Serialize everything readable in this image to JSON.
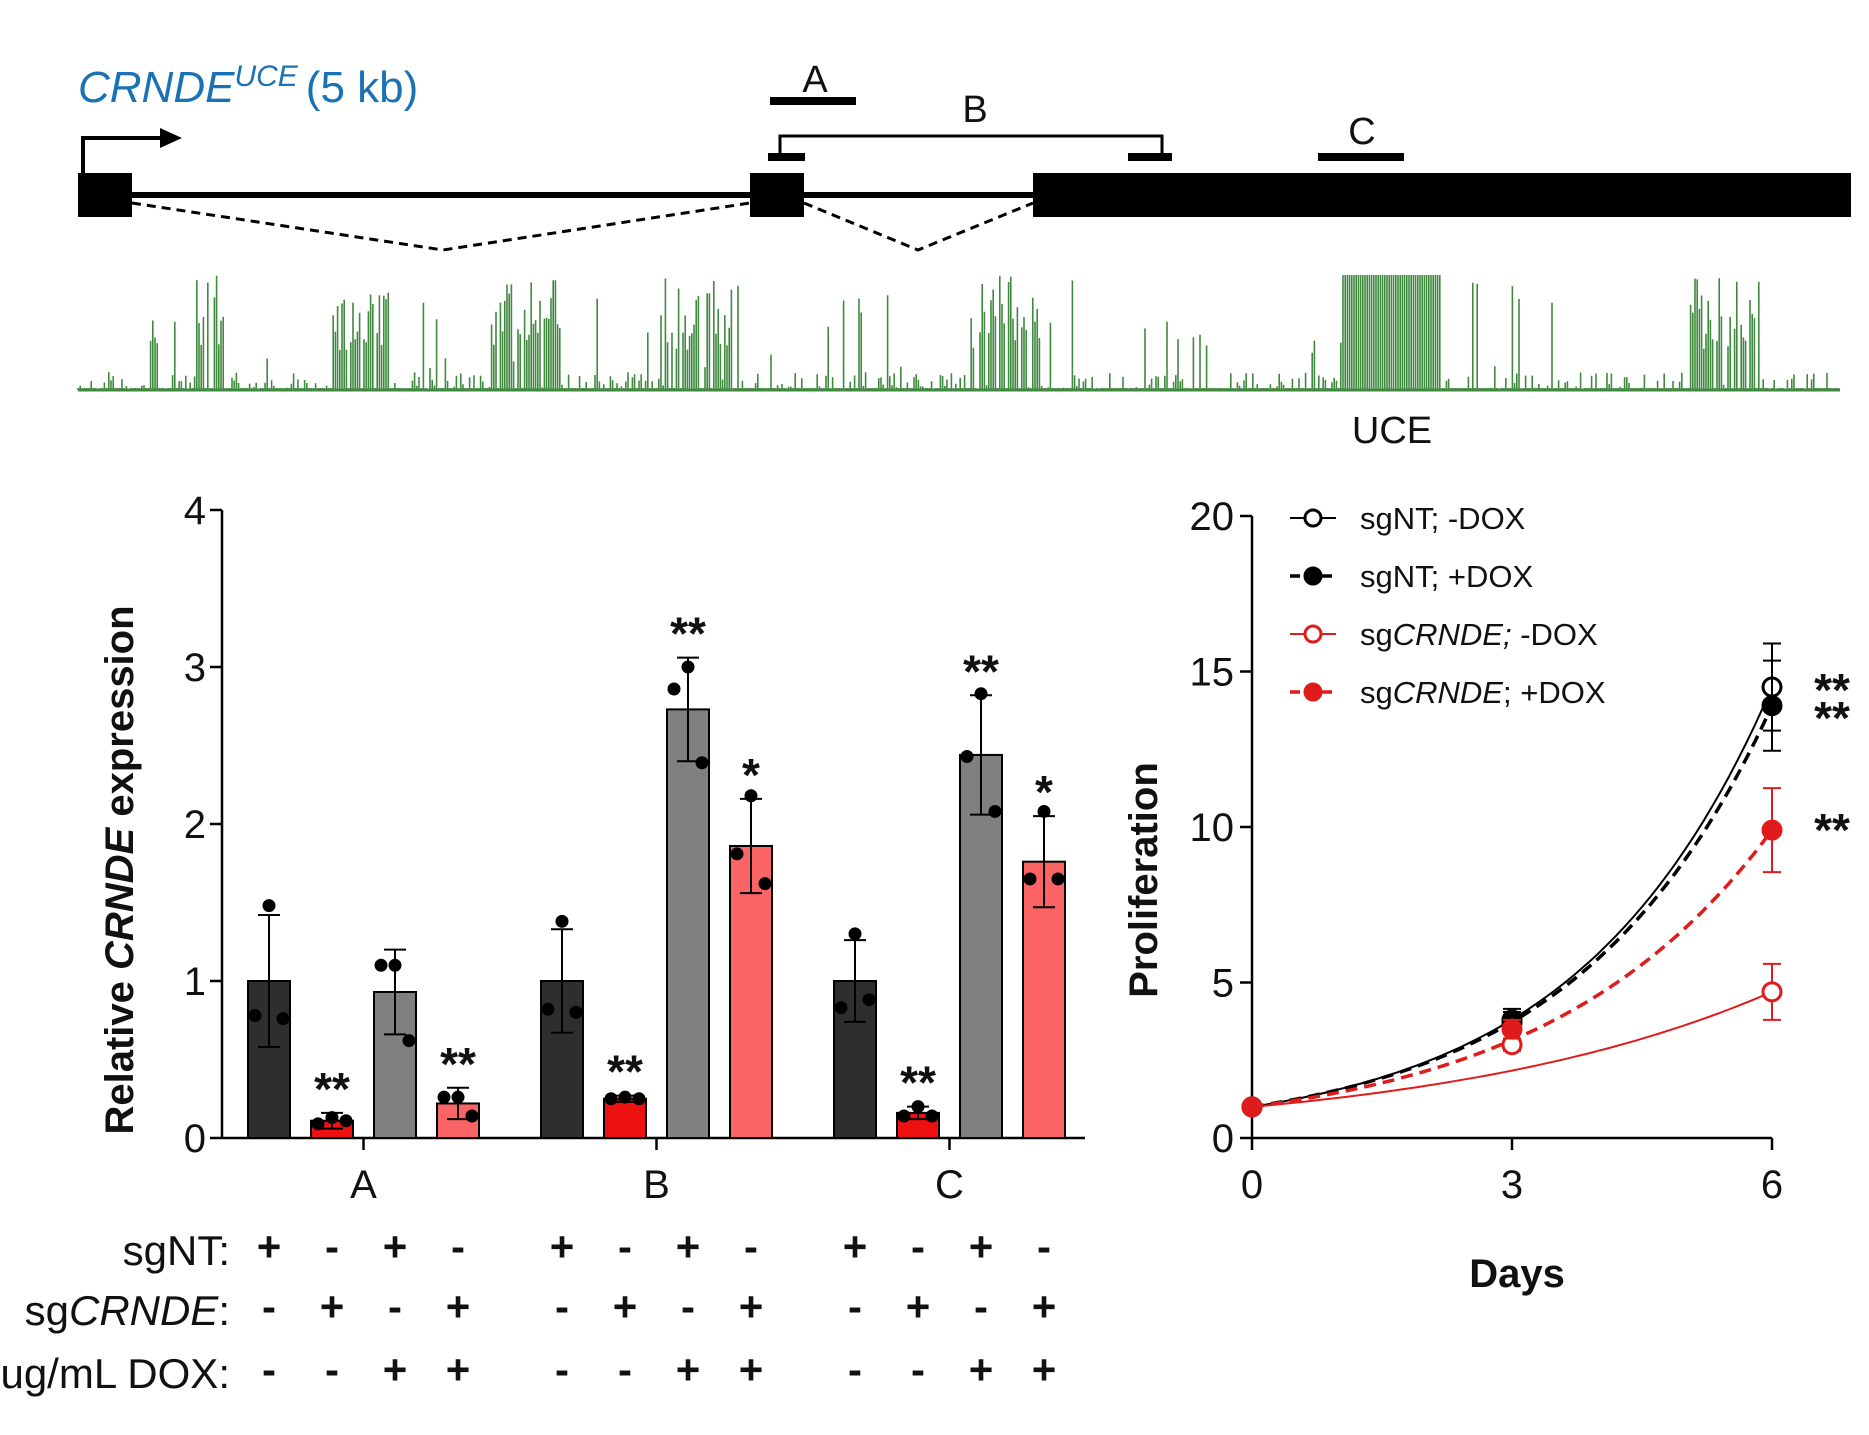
{
  "figure": {
    "gene_title": "CRNDE",
    "gene_superscript": "UCE",
    "gene_size": "(5 kb)",
    "region_labels": [
      "A",
      "B",
      "C"
    ],
    "uce_label": "UCE",
    "colors": {
      "title_blue": "#1a72b5",
      "conservation_green": "#3f8a3f"
    }
  },
  "treatment_table": {
    "rows": [
      {
        "label_prefix": "sgNT:",
        "label_italic": "",
        "label_suffix": "",
        "signs": [
          "+",
          "-",
          "+",
          "-",
          "+",
          "-",
          "+",
          "-",
          "+",
          "-",
          "+",
          "-"
        ]
      },
      {
        "label_prefix": "sg",
        "label_italic": "CRNDE",
        "label_suffix": ":",
        "signs": [
          "-",
          "+",
          "-",
          "+",
          "-",
          "+",
          "-",
          "+",
          "-",
          "+",
          "-",
          "+"
        ]
      },
      {
        "label_prefix": "ug/mL DOX:",
        "label_italic": "",
        "label_suffix": "",
        "signs": [
          "-",
          "-",
          "+",
          "+",
          "-",
          "-",
          "+",
          "+",
          "-",
          "-",
          "+",
          "+"
        ]
      }
    ]
  },
  "chart_data": [
    {
      "type": "bar",
      "title": "",
      "ylabel_prefix": "Relative ",
      "ylabel_italic": "CRNDE",
      "ylabel_suffix": " expression",
      "xlabel": "",
      "ylim": [
        0,
        4
      ],
      "yticks": [
        0,
        1,
        2,
        3,
        4
      ],
      "categories": [
        "A",
        "B",
        "C"
      ],
      "bar_colors": [
        "#2e2e2e",
        "#ee1111",
        "#808080",
        "#fa6464"
      ],
      "series": [
        {
          "name": "sgNT; -DOX",
          "values": [
            1.0,
            1.0,
            1.0
          ],
          "errors": [
            0.42,
            0.33,
            0.26
          ],
          "points": [
            [
              1.48,
              0.78,
              0.76
            ],
            [
              1.38,
              0.82,
              0.8
            ],
            [
              1.3,
              0.83,
              0.88
            ]
          ],
          "sig": [
            "",
            "",
            ""
          ]
        },
        {
          "name": "sgCRNDE; -DOX",
          "values": [
            0.11,
            0.25,
            0.16
          ],
          "errors": [
            0.05,
            0.02,
            0.04
          ],
          "points": [
            [
              0.13,
              0.09,
              0.11
            ],
            [
              0.26,
              0.25,
              0.25
            ],
            [
              0.2,
              0.14,
              0.14
            ]
          ],
          "sig": [
            "**",
            "**",
            "**"
          ]
        },
        {
          "name": "sgNT; +DOX",
          "values": [
            0.93,
            2.73,
            2.44
          ],
          "errors": [
            0.27,
            0.33,
            0.38
          ],
          "points": [
            [
              1.1,
              1.1,
              0.62
            ],
            [
              3.0,
              2.86,
              2.39
            ],
            [
              2.83,
              2.43,
              2.08
            ]
          ],
          "sig": [
            "",
            "**",
            "**"
          ]
        },
        {
          "name": "sgCRNDE; +DOX",
          "values": [
            0.22,
            1.86,
            1.76
          ],
          "errors": [
            0.1,
            0.3,
            0.29
          ],
          "points": [
            [
              0.26,
              0.26,
              0.14
            ],
            [
              2.18,
              1.81,
              1.62
            ],
            [
              2.08,
              1.65,
              1.65
            ]
          ],
          "sig": [
            "**",
            "*",
            "*"
          ]
        }
      ]
    },
    {
      "type": "line",
      "title": "",
      "xlabel": "Days",
      "ylabel": "Proliferation",
      "xlim": [
        0,
        6
      ],
      "ylim": [
        0,
        20
      ],
      "xticks": [
        0,
        3,
        6
      ],
      "yticks": [
        0,
        5,
        10,
        15,
        20
      ],
      "series": [
        {
          "name": "sgNT; -DOX",
          "label_prefix": "sgNT; -DOX",
          "label_italic": "",
          "label_suffix": "",
          "color": "#000000",
          "filled": false,
          "dashed": false,
          "x": [
            0,
            3,
            6
          ],
          "y": [
            1.0,
            3.7,
            14.5
          ],
          "err": [
            0,
            0.35,
            1.4
          ],
          "sig": "**"
        },
        {
          "name": "sgNT; +DOX",
          "label_prefix": "sgNT; +DOX",
          "label_italic": "",
          "label_suffix": "",
          "color": "#000000",
          "filled": true,
          "dashed": true,
          "x": [
            0,
            3,
            6
          ],
          "y": [
            1.0,
            3.8,
            13.9
          ],
          "err": [
            0,
            0.35,
            1.45
          ],
          "sig": "**"
        },
        {
          "name": "sgCRNDE; -DOX",
          "label_prefix": "sg",
          "label_italic": "CRNDE;",
          "label_suffix": " -DOX",
          "color": "#e01b1b",
          "filled": false,
          "dashed": false,
          "x": [
            0,
            3,
            6
          ],
          "y": [
            1.0,
            3.0,
            4.7
          ],
          "err": [
            0,
            0.2,
            0.9
          ],
          "sig": ""
        },
        {
          "name": "sgCRNDE; +DOX",
          "label_prefix": "sg",
          "label_italic": "CRNDE",
          "label_suffix": "; +DOX",
          "color": "#e01b1b",
          "filled": true,
          "dashed": true,
          "x": [
            0,
            3,
            6
          ],
          "y": [
            1.0,
            3.5,
            9.9
          ],
          "err": [
            0,
            0.3,
            1.35
          ],
          "sig": "**"
        }
      ]
    }
  ]
}
